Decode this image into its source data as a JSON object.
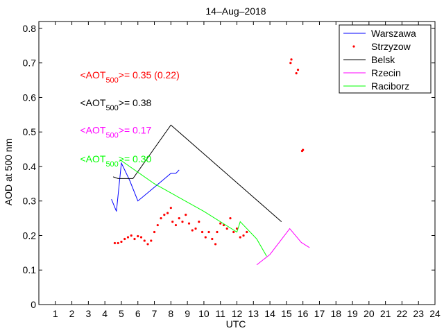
{
  "chart_data": {
    "type": "line",
    "title": "14–Aug–2018",
    "xlabel": "UTC",
    "ylabel": "AOD at 500 nm",
    "xlim": [
      0,
      24
    ],
    "ylim": [
      0,
      0.82
    ],
    "xticks": [
      1,
      2,
      3,
      4,
      5,
      6,
      7,
      8,
      9,
      10,
      11,
      12,
      13,
      14,
      15,
      16,
      17,
      18,
      19,
      20,
      21,
      22,
      23,
      24
    ],
    "xtick_labels": [
      "1",
      "2",
      "3",
      "4",
      "5",
      "6",
      "7",
      "8",
      "9",
      "10",
      "11",
      "12",
      "13",
      "14",
      "15",
      "16",
      "17",
      "18",
      "19",
      "20",
      "21",
      "22",
      "23",
      "24"
    ],
    "yticks": [
      0,
      0.1,
      0.2,
      0.3,
      0.4,
      0.5,
      0.6,
      0.7,
      0.8
    ],
    "ytick_labels": [
      "0",
      "0.1",
      "0.2",
      "0.3",
      "0.4",
      "0.5",
      "0.6",
      "0.7",
      "0.8"
    ],
    "grid": false,
    "legend_position": "top-right",
    "series": [
      {
        "name": "Warszawa",
        "color": "#0000ff",
        "style": "line",
        "x": [
          4.4,
          4.7,
          5.0,
          5.5,
          6.0,
          7.0,
          8.0,
          8.3,
          8.5
        ],
        "y": [
          0.305,
          0.27,
          0.41,
          0.36,
          0.3,
          0.34,
          0.38,
          0.38,
          0.39
        ]
      },
      {
        "name": "Strzyzow",
        "color": "#ff0000",
        "style": "points",
        "x": [
          4.6,
          4.8,
          5.0,
          5.2,
          5.4,
          5.6,
          5.8,
          6.0,
          6.2,
          6.4,
          6.6,
          6.8,
          7.0,
          7.2,
          7.4,
          7.6,
          7.8,
          8.0,
          8.1,
          8.3,
          8.5,
          8.7,
          8.9,
          9.1,
          9.3,
          9.5,
          9.7,
          9.9,
          10.1,
          10.3,
          10.5,
          10.7,
          10.8,
          11.0,
          11.2,
          11.4,
          11.6,
          11.8,
          12.0,
          12.2,
          12.4,
          12.6,
          15.25,
          15.3,
          15.6,
          15.7,
          15.95,
          16.0
        ],
        "y": [
          0.178,
          0.178,
          0.182,
          0.19,
          0.195,
          0.2,
          0.19,
          0.198,
          0.195,
          0.185,
          0.175,
          0.185,
          0.21,
          0.23,
          0.25,
          0.26,
          0.265,
          0.28,
          0.24,
          0.23,
          0.25,
          0.24,
          0.26,
          0.235,
          0.215,
          0.22,
          0.24,
          0.21,
          0.195,
          0.21,
          0.19,
          0.175,
          0.21,
          0.235,
          0.23,
          0.22,
          0.25,
          0.21,
          0.22,
          0.195,
          0.2,
          0.21,
          0.7,
          0.71,
          0.67,
          0.68,
          0.445,
          0.448
        ]
      },
      {
        "name": "Belsk",
        "color": "#000000",
        "style": "line",
        "x": [
          4.5,
          4.8,
          5.2,
          5.7,
          8.0,
          14.7
        ],
        "y": [
          0.37,
          0.365,
          0.365,
          0.365,
          0.52,
          0.24
        ]
      },
      {
        "name": "Rzecin",
        "color": "#ff00ff",
        "style": "line",
        "x": [
          13.2,
          14.0,
          15.2,
          15.9,
          16.4
        ],
        "y": [
          0.115,
          0.145,
          0.22,
          0.18,
          0.165
        ]
      },
      {
        "name": "Raciborz",
        "color": "#00ff00",
        "style": "line",
        "x": [
          4.9,
          7.0,
          10.0,
          12.0,
          12.2,
          13.2,
          13.8
        ],
        "y": [
          0.42,
          0.35,
          0.27,
          0.21,
          0.24,
          0.19,
          0.14
        ]
      }
    ],
    "annotations": [
      {
        "pre": "<AOT",
        "sub": "500",
        "post": ">= 0.35 (0.22)",
        "color": "#ff0000",
        "x": 2.5,
        "y": 0.655
      },
      {
        "pre": "<AOT",
        "sub": "500",
        "post": ">= 0.38",
        "color": "#000000",
        "x": 2.5,
        "y": 0.575
      },
      {
        "pre": "<AOT",
        "sub": "500",
        "post": ">= 0.17",
        "color": "#ff00ff",
        "x": 2.5,
        "y": 0.495
      },
      {
        "pre": "<AOT",
        "sub": "500",
        "post": ">= 0.30",
        "color": "#00ff00",
        "x": 2.5,
        "y": 0.412
      }
    ]
  }
}
